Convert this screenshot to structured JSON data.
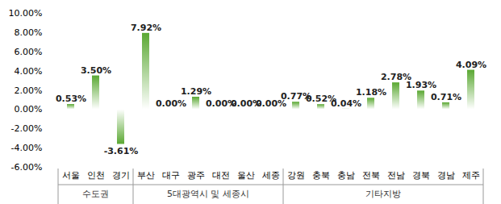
{
  "chart_data": {
    "type": "bar",
    "categories": [
      "서울",
      "인천",
      "경기",
      "부산",
      "대구",
      "광주",
      "대전",
      "울산",
      "세종",
      "강원",
      "충북",
      "충남",
      "전북",
      "전남",
      "경북",
      "경남",
      "제주"
    ],
    "values": [
      0.53,
      3.5,
      -3.61,
      7.92,
      0.0,
      1.29,
      0.0,
      0.0,
      0.0,
      0.77,
      0.52,
      0.04,
      1.18,
      2.78,
      1.93,
      0.71,
      4.09
    ],
    "value_labels": [
      "0.53%",
      "3.50%",
      "-3.61%",
      "7.92%",
      "0.00%",
      "1.29%",
      "0.00%",
      "0.00%",
      "0.00%",
      "0.77%",
      "0.52%",
      "0.04%",
      "1.18%",
      "2.78%",
      "1.93%",
      "0.71%",
      "4.09%"
    ],
    "color": "#5aa832",
    "ylim": [
      -6,
      10
    ],
    "yticks": [
      {
        "value": -6,
        "label": "-6.00%"
      },
      {
        "value": -4,
        "label": "-4.00%"
      },
      {
        "value": -2,
        "label": "-2.00%"
      },
      {
        "value": 0,
        "label": "0.00%"
      },
      {
        "value": 2,
        "label": "2.00%"
      },
      {
        "value": 4,
        "label": "4.00%"
      },
      {
        "value": 6,
        "label": "6.00%"
      },
      {
        "value": 8,
        "label": "8.00%"
      },
      {
        "value": 10,
        "label": "10.00%"
      }
    ],
    "data_labels": true,
    "grid": false,
    "groups": [
      {
        "name": "수도권",
        "categories": [
          "서울",
          "인천",
          "경기"
        ]
      },
      {
        "name": "5대광역시 및 세종시",
        "categories": [
          "부산",
          "대구",
          "광주",
          "대전",
          "울산",
          "세종"
        ]
      },
      {
        "name": "기타지방",
        "categories": [
          "강원",
          "충북",
          "충남",
          "전북",
          "전남",
          "경북",
          "경남",
          "제주"
        ]
      }
    ]
  }
}
